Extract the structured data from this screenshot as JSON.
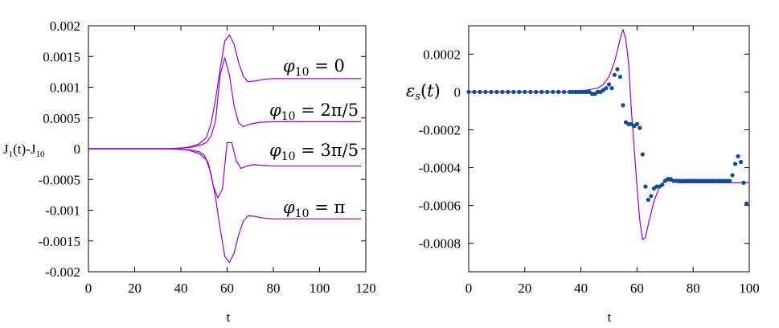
{
  "chart_data": [
    {
      "type": "line",
      "title": "",
      "xlabel": "t",
      "ylabel": "J1(t)-J10",
      "xlim": [
        0,
        120
      ],
      "ylim": [
        -0.002,
        0.002
      ],
      "xticks": [
        "0",
        "20",
        "40",
        "60",
        "80",
        "100",
        "120"
      ],
      "yticks": [
        "-0.002",
        "-0.0015",
        "-0.001",
        "-0.0005",
        "0",
        "0.0005",
        "0.001",
        "0.0015",
        "0.002"
      ],
      "grid": false,
      "line_color": "#9400d3",
      "annotations": [
        "φ10 = 0",
        "φ10 = 2π/5",
        "φ10 = 3π/5",
        "φ10 = π"
      ],
      "series": [
        {
          "x": [
            0,
            34,
            40,
            44,
            48,
            51,
            53,
            55,
            57,
            59,
            61,
            63,
            65,
            67,
            69,
            72,
            76,
            80,
            90,
            100,
            118
          ],
          "y": [
            0,
            0,
            1e-05,
            3e-05,
            8e-05,
            0.00018,
            0.0004,
            0.0008,
            0.0013,
            0.00175,
            0.00185,
            0.0017,
            0.0014,
            0.00118,
            0.00109,
            0.0011,
            0.00113,
            0.00114,
            0.00114,
            0.00114,
            0.00114
          ]
        },
        {
          "x": [
            0,
            34,
            40,
            44,
            48,
            51,
            53,
            55,
            57,
            59,
            61,
            63,
            65,
            67,
            70,
            74,
            80,
            90,
            100,
            118
          ],
          "y": [
            0,
            0,
            1e-05,
            2e-05,
            5e-05,
            0.0001,
            0.0002,
            0.00045,
            0.0012,
            0.00148,
            0.0012,
            0.0007,
            0.00042,
            0.00036,
            0.0004,
            0.00043,
            0.00044,
            0.00044,
            0.00044,
            0.00044
          ]
        },
        {
          "x": [
            0,
            34,
            40,
            44,
            48,
            50,
            52,
            54,
            56,
            58,
            60,
            62,
            64,
            66,
            68,
            71,
            75,
            80,
            90,
            100,
            118
          ],
          "y": [
            0,
            0,
            -1e-05,
            -2e-05,
            -5e-05,
            -0.0001,
            -0.00025,
            -0.0006,
            -0.0008,
            -0.00065,
            0.0001,
            0.0001,
            -0.0002,
            -0.00032,
            -0.00029,
            -0.00026,
            -0.00027,
            -0.00028,
            -0.00028,
            -0.00028,
            -0.00028
          ]
        },
        {
          "x": [
            0,
            34,
            40,
            44,
            48,
            51,
            53,
            55,
            57,
            59,
            61,
            63,
            65,
            67,
            69,
            72,
            76,
            80,
            90,
            100,
            118
          ],
          "y": [
            0,
            0,
            -1e-05,
            -3e-05,
            -8e-05,
            -0.00018,
            -0.0004,
            -0.0008,
            -0.0013,
            -0.00175,
            -0.00185,
            -0.0017,
            -0.0014,
            -0.00118,
            -0.00109,
            -0.0011,
            -0.00113,
            -0.00114,
            -0.00114,
            -0.00114,
            -0.00114
          ]
        }
      ]
    },
    {
      "type": "line",
      "title": "",
      "xlabel": "t",
      "ylabel": "εs(t)",
      "xlim": [
        0,
        100
      ],
      "ylim": [
        -0.00095,
        0.00035
      ],
      "xticks": [
        "0",
        "20",
        "40",
        "60",
        "80",
        "100"
      ],
      "yticks": [
        "-0.0008",
        "-0.0006",
        "-0.0004",
        "-0.0002",
        "0",
        "0.0002"
      ],
      "grid": false,
      "line_color": "#9400d3",
      "dot_color": "#0f4c91",
      "series": [
        {
          "kind": "line",
          "x": [
            0,
            38,
            42,
            46,
            48,
            50,
            52,
            54,
            55,
            56,
            57,
            58,
            59,
            60,
            61,
            62,
            63,
            64,
            66,
            68,
            70,
            72,
            75,
            80,
            90,
            100
          ],
          "y": [
            0,
            0,
            1e-05,
            2e-05,
            4e-05,
            8e-05,
            0.00016,
            0.00028,
            0.00033,
            0.00028,
            0.00015,
            -0.0001,
            -0.0003,
            -0.0005,
            -0.00068,
            -0.00078,
            -0.00077,
            -0.0007,
            -0.00058,
            -0.0005,
            -0.00047,
            -0.00047,
            -0.00048,
            -0.00048,
            -0.00048,
            -0.00048
          ]
        },
        {
          "kind": "points",
          "x": [
            0,
            2,
            4,
            6,
            8,
            10,
            12,
            14,
            16,
            18,
            20,
            22,
            24,
            26,
            28,
            30,
            32,
            34,
            36,
            37,
            38,
            39,
            40,
            41,
            42,
            43,
            44,
            45,
            46,
            47,
            48,
            49,
            50,
            51,
            52,
            53,
            54,
            55,
            56,
            57,
            58,
            59,
            60,
            61,
            62,
            63,
            64,
            65,
            66,
            67,
            68,
            69,
            70,
            71,
            72,
            73,
            74,
            75,
            76,
            77,
            78,
            79,
            80,
            81,
            82,
            83,
            84,
            85,
            86,
            87,
            88,
            89,
            90,
            91,
            92,
            93,
            94,
            95,
            96,
            97,
            98,
            99
          ],
          "y": [
            0,
            0,
            0,
            0,
            0,
            0,
            0,
            0,
            0,
            0,
            0,
            0,
            0,
            0,
            0,
            0,
            0,
            0,
            0,
            0,
            0,
            0,
            0,
            0,
            0,
            0,
            -1e-05,
            -1e-05,
            0,
            0,
            1e-05,
            2e-05,
            4e-05,
            2e-05,
            9e-05,
            0.00012,
            8e-05,
            -7e-05,
            -0.00016,
            -0.00017,
            -0.00017,
            -0.00018,
            -0.00017,
            -0.00019,
            -0.00033,
            -0.0005,
            -0.00057,
            -0.00055,
            -0.00051,
            -0.0005,
            -0.0005,
            -0.00049,
            -0.00047,
            -0.00046,
            -0.00046,
            -0.00047,
            -0.00047,
            -0.00047,
            -0.00047,
            -0.00047,
            -0.00047,
            -0.00047,
            -0.00047,
            -0.00047,
            -0.00047,
            -0.00047,
            -0.00047,
            -0.00047,
            -0.00047,
            -0.00047,
            -0.00047,
            -0.00047,
            -0.00047,
            -0.00047,
            -0.00047,
            -0.00047,
            -0.00044,
            -0.00038,
            -0.00034,
            -0.00037,
            -0.00048,
            -0.00059
          ]
        }
      ]
    }
  ]
}
